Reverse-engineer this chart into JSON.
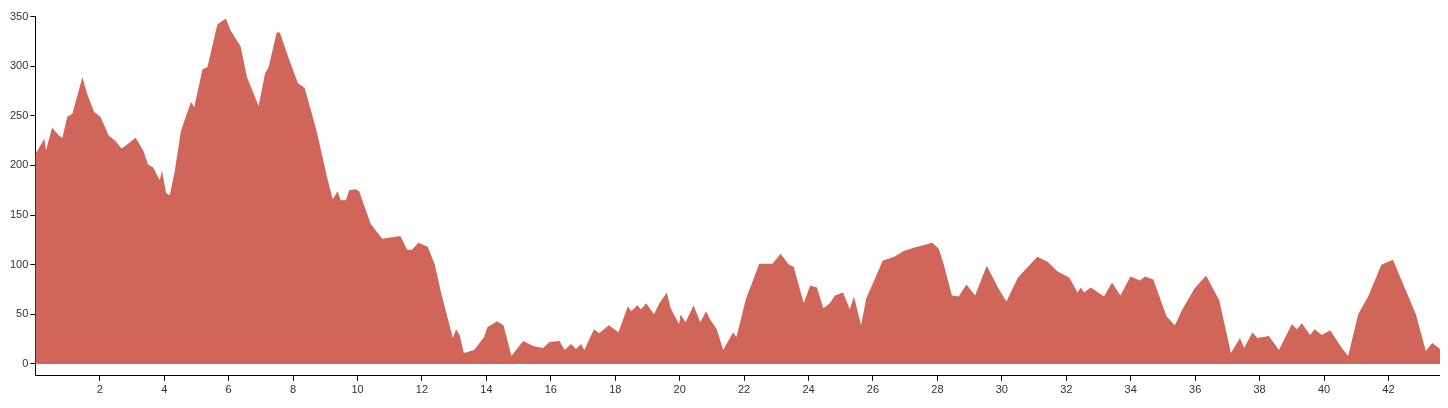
{
  "chart_data": {
    "type": "area",
    "color": "#d0665a",
    "xlim": [
      0,
      43.6
    ],
    "ylim": [
      -12,
      350
    ],
    "xticks": [
      2,
      4,
      6,
      8,
      10,
      12,
      14,
      16,
      18,
      20,
      22,
      24,
      26,
      28,
      30,
      32,
      34,
      36,
      38,
      40,
      42
    ],
    "yticks": [
      0,
      50,
      100,
      150,
      200,
      250,
      300,
      350
    ],
    "grid": false,
    "legend": false,
    "x": [
      0,
      0.05,
      0.28,
      0.33,
      0.52,
      0.74,
      0.84,
      0.99,
      1.15,
      1.46,
      1.61,
      1.82,
      2.02,
      2.28,
      2.48,
      2.68,
      2.89,
      3.11,
      3.35,
      3.5,
      3.66,
      3.86,
      3.93,
      4.06,
      4.17,
      4.32,
      4.52,
      4.83,
      4.93,
      5.19,
      5.34,
      5.65,
      5.91,
      6.06,
      6.37,
      6.57,
      6.93,
      7.13,
      7.24,
      7.49,
      7.59,
      7.85,
      8.15,
      8.36,
      8.72,
      9.07,
      9.23,
      9.38,
      9.48,
      9.64,
      9.74,
      9.94,
      10.05,
      10.41,
      10.77,
      11.33,
      11.54,
      11.69,
      11.89,
      12.18,
      12.4,
      12.6,
      12.96,
      13.06,
      13.17,
      13.3,
      13.62,
      13.93,
      14.03,
      14.33,
      14.53,
      14.78,
      15.14,
      15.45,
      15.76,
      15.96,
      16.27,
      16.43,
      16.63,
      16.78,
      16.94,
      17.04,
      17.34,
      17.5,
      17.8,
      18.1,
      18.39,
      18.5,
      18.68,
      18.8,
      18.96,
      19.2,
      19.37,
      19.6,
      19.72,
      19.98,
      20.03,
      20.18,
      20.43,
      20.64,
      20.82,
      20.94,
      21.15,
      21.35,
      21.66,
      21.76,
      22.06,
      22.47,
      22.88,
      23.13,
      23.39,
      23.54,
      23.85,
      24.05,
      24.26,
      24.46,
      24.66,
      24.82,
      25.07,
      25.28,
      25.41,
      25.63,
      25.79,
      26.05,
      26.3,
      26.66,
      26.97,
      27.27,
      27.84,
      28.04,
      28.2,
      28.45,
      28.66,
      28.9,
      29.17,
      29.53,
      29.88,
      30.14,
      30.5,
      30.81,
      31.1,
      31.42,
      31.73,
      32.09,
      32.35,
      32.45,
      32.55,
      32.76,
      33.17,
      33.42,
      33.68,
      33.99,
      34.29,
      34.44,
      34.7,
      35.11,
      35.37,
      35.62,
      35.98,
      36.34,
      36.75,
      37.11,
      37.39,
      37.52,
      37.78,
      37.93,
      38.29,
      38.6,
      39.0,
      39.16,
      39.31,
      39.57,
      39.71,
      39.93,
      40.19,
      40.55,
      40.75,
      41.06,
      41.37,
      41.78,
      42.14,
      42.5,
      42.85,
      43.16,
      43.36,
      43.6
    ],
    "values": [
      212,
      214,
      227,
      215,
      238,
      230,
      228,
      249,
      252,
      289,
      272,
      254,
      249,
      230,
      225,
      217,
      222,
      228,
      215,
      201,
      198,
      185,
      195,
      172,
      170,
      193,
      235,
      264,
      259,
      297,
      299,
      342,
      348,
      336,
      320,
      289,
      260,
      293,
      299,
      334,
      334,
      309,
      283,
      278,
      236,
      186,
      166,
      174,
      165,
      165,
      175,
      176,
      174,
      141,
      126,
      129,
      115,
      115,
      122,
      118,
      100,
      71,
      26,
      35,
      29,
      11,
      14,
      27,
      37,
      43,
      39,
      8,
      23,
      18,
      16,
      22,
      23,
      14,
      20,
      15,
      20,
      14,
      35,
      31,
      39,
      32,
      58,
      53,
      59,
      55,
      61,
      50,
      61,
      72,
      56,
      40,
      50,
      42,
      59,
      42,
      53,
      45,
      35,
      14,
      32,
      27,
      66,
      101,
      101,
      111,
      100,
      98,
      61,
      79,
      77,
      56,
      61,
      69,
      72,
      55,
      68,
      39,
      66,
      85,
      104,
      108,
      114,
      117,
      122,
      116,
      100,
      69,
      68,
      80,
      69,
      99,
      77,
      63,
      87,
      98,
      108,
      103,
      93,
      87,
      72,
      77,
      72,
      77,
      68,
      82,
      69,
      88,
      84,
      88,
      85,
      48,
      39,
      56,
      76,
      89,
      64,
      11,
      26,
      16,
      32,
      26,
      28,
      14,
      40,
      35,
      41,
      29,
      35,
      29,
      34,
      16,
      8,
      50,
      68,
      100,
      105,
      77,
      50,
      13,
      21,
      15
    ]
  }
}
